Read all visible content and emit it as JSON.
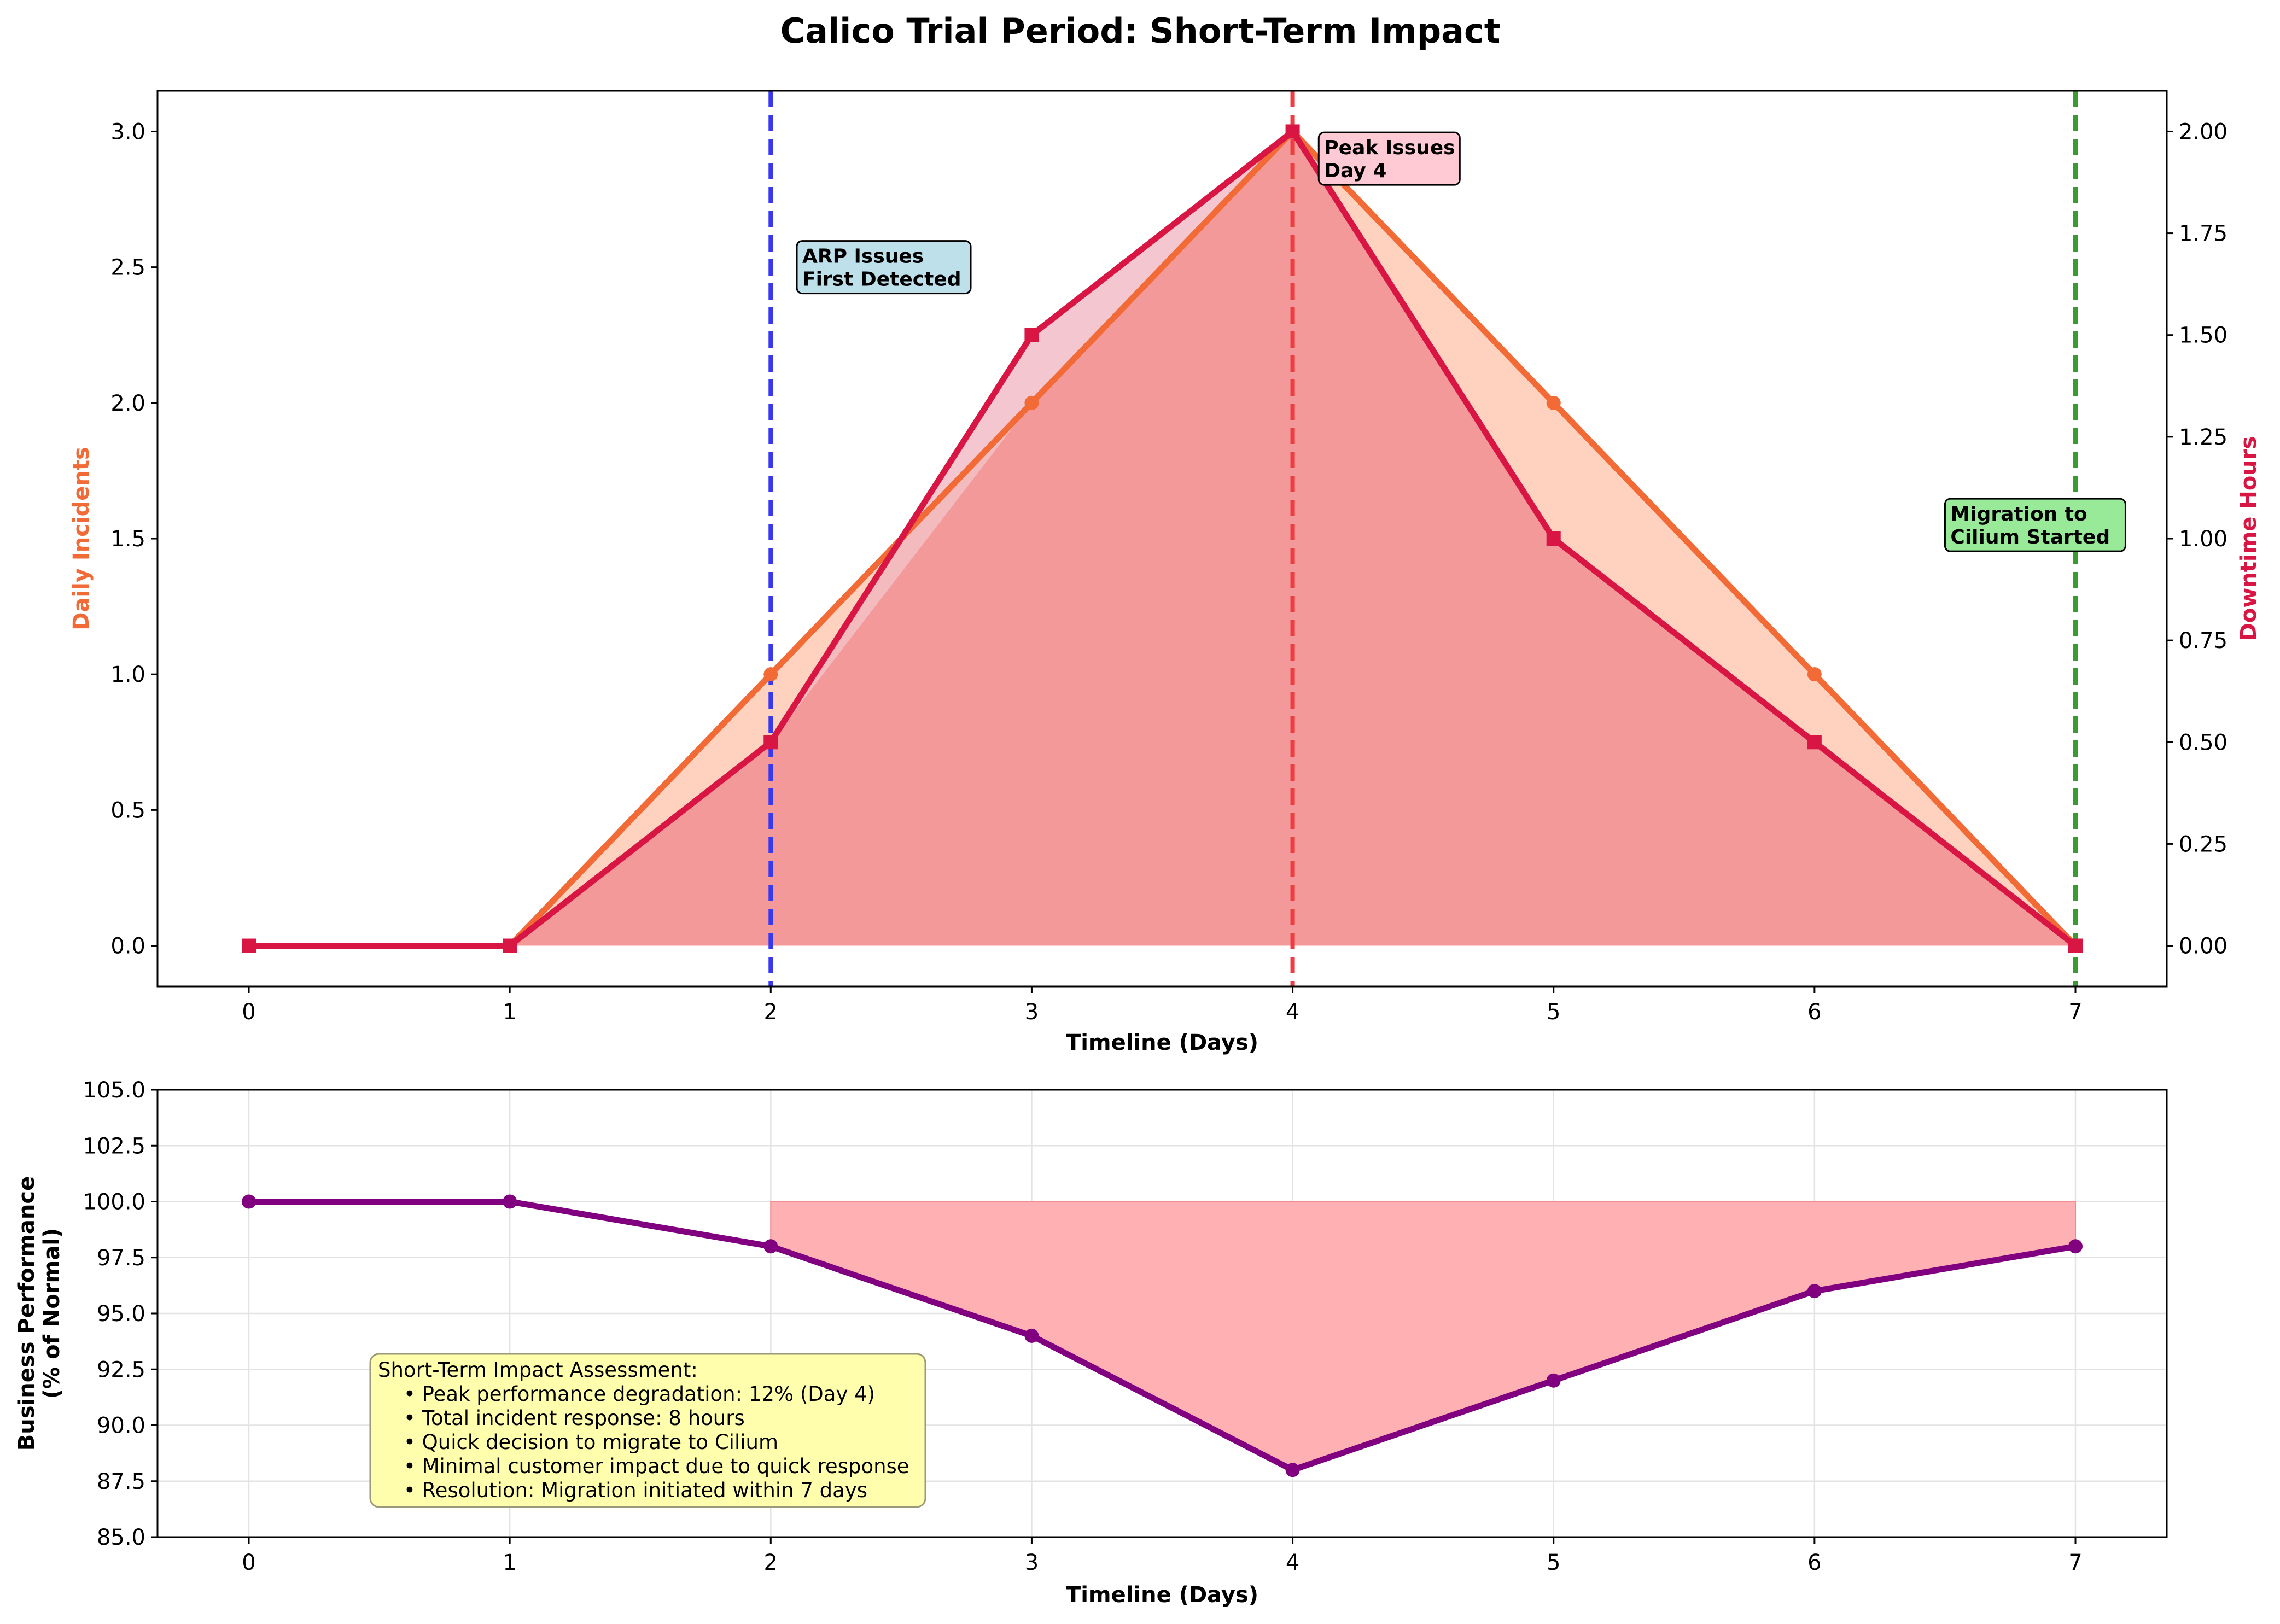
{
  "title": "Calico Trial Period: Short-Term Impact",
  "chart_data": [
    {
      "type": "line",
      "panel": "top",
      "xlabel": "Timeline (Days)",
      "ylabel_left": "Daily Incidents",
      "ylabel_right": "Downtime Hours",
      "xlim": [
        -0.35,
        7.35
      ],
      "ylim_left": [
        -0.15,
        3.15
      ],
      "ylim_right": [
        -0.1,
        2.1
      ],
      "x_ticks": [
        "0",
        "1",
        "2",
        "3",
        "4",
        "5",
        "6",
        "7"
      ],
      "y_ticks_left": [
        "0.0",
        "0.5",
        "1.0",
        "1.5",
        "2.0",
        "2.5",
        "3.0"
      ],
      "y_ticks_right": [
        "0.00",
        "0.25",
        "0.50",
        "0.75",
        "1.00",
        "1.25",
        "1.50",
        "1.75",
        "2.00"
      ],
      "grid": false,
      "x": [
        0,
        1,
        2,
        3,
        4,
        5,
        6,
        7
      ],
      "series": [
        {
          "axis": "left",
          "values": [
            0,
            0,
            1,
            2,
            3,
            2,
            1,
            0
          ],
          "color": "#f26a35",
          "fill": "#ffd2c0",
          "marker": "circle"
        },
        {
          "axis": "right",
          "values": [
            0,
            0,
            0.5,
            1.5,
            2.0,
            1.0,
            0.5,
            0
          ],
          "color": "#d81543",
          "fill": "#f0b3bf",
          "marker": "square"
        }
      ],
      "vlines": [
        {
          "x": 2,
          "color": "#3838f0"
        },
        {
          "x": 4,
          "color": "#f03c40"
        },
        {
          "x": 7,
          "color": "#3a9a34"
        }
      ],
      "annotations": [
        {
          "lines": [
            "ARP Issues",
            "First Detected"
          ],
          "bg": "#bde0eb"
        },
        {
          "lines": [
            "Peak Issues",
            "Day 4"
          ],
          "bg": "#ffcad3"
        },
        {
          "lines": [
            "Migration to",
            "Cilium Started"
          ],
          "bg": "#99ea98"
        }
      ]
    },
    {
      "type": "line",
      "panel": "bottom",
      "xlabel": "Timeline (Days)",
      "ylabel_lines": [
        "Business Performance",
        "(% of Normal)"
      ],
      "xlim": [
        -0.35,
        7.35
      ],
      "ylim": [
        85,
        105
      ],
      "x_ticks": [
        "0",
        "1",
        "2",
        "3",
        "4",
        "5",
        "6",
        "7"
      ],
      "y_ticks": [
        "85.0",
        "87.5",
        "90.0",
        "92.5",
        "95.0",
        "97.5",
        "100.0",
        "102.5",
        "105.0"
      ],
      "grid": true,
      "x": [
        0,
        1,
        2,
        3,
        4,
        5,
        6,
        7
      ],
      "series": [
        {
          "values": [
            100,
            100,
            98,
            94,
            88,
            92,
            96,
            98
          ],
          "color": "#800080",
          "marker": "circle"
        }
      ],
      "shaded_gap": {
        "from_x": 2,
        "to_x": 7,
        "baseline": 100,
        "color": "#ffb0b3"
      },
      "note": {
        "lines": [
          "Short-Term Impact Assessment:",
          "    • Peak performance degradation: 12% (Day 4)",
          "    • Total incident response: 8 hours",
          "    • Quick decision to migrate to Cilium",
          "    • Minimal customer impact due to quick response",
          "    • Resolution: Migration initiated within 7 days"
        ],
        "bg": "#fefea8"
      }
    }
  ]
}
